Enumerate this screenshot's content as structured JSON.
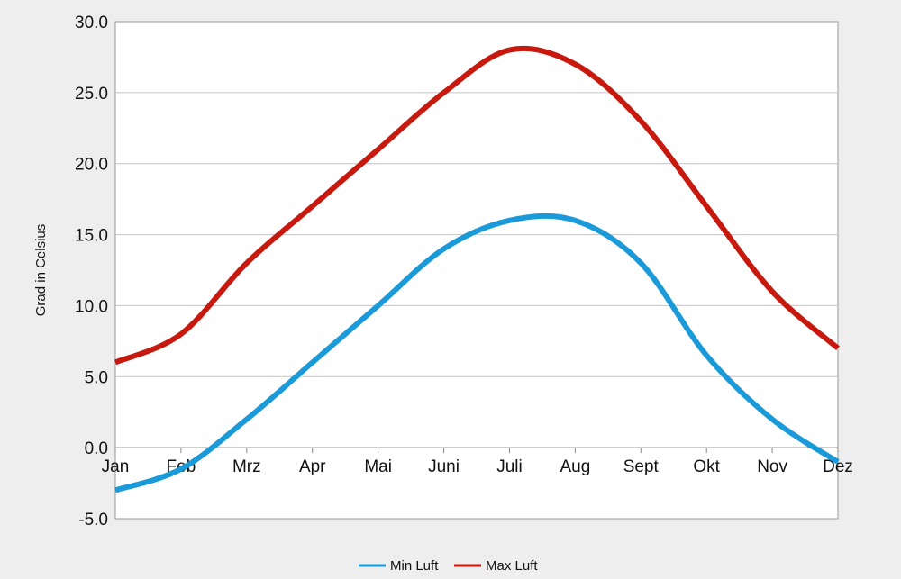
{
  "chart_data": {
    "type": "line",
    "ylabel": "Grad in Celsius",
    "ylim": [
      -5,
      30
    ],
    "ytick_step": 5,
    "categories": [
      "Jan",
      "Feb",
      "Mrz",
      "Apr",
      "Mai",
      "Juni",
      "Juli",
      "Aug",
      "Sept",
      "Okt",
      "Nov",
      "Dez"
    ],
    "grid": true,
    "legend_position": "bottom",
    "series": [
      {
        "name": "Min Luft",
        "color": "#1a9ad8",
        "values": [
          -3,
          -1.5,
          2,
          6,
          10,
          14,
          16,
          16,
          13,
          6.5,
          2,
          -1
        ]
      },
      {
        "name": "Max Luft",
        "color": "#c8190f",
        "values": [
          6,
          8,
          13,
          17,
          21,
          25,
          28,
          27,
          23,
          17,
          11,
          7
        ]
      }
    ]
  }
}
